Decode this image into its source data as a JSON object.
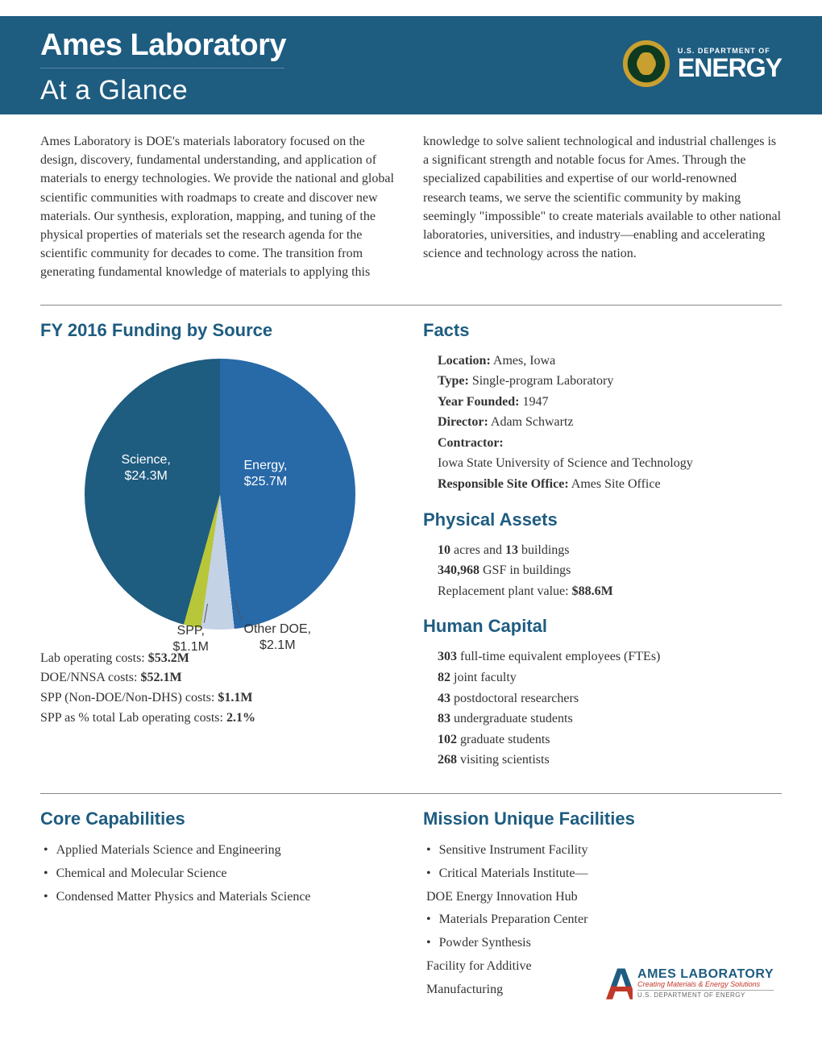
{
  "header": {
    "title": "Ames Laboratory",
    "subtitle": "At a Glance",
    "doe_small": "U.S. DEPARTMENT OF",
    "doe_big": "ENERGY"
  },
  "intro_text": "Ames Laboratory is DOE's materials laboratory focused on the design, discovery, fundamental understanding, and application of materials to energy technologies. We provide the national and global scientific communities with roadmaps to create and discover new materials. Our synthesis, exploration, mapping, and tuning of the physical properties of materials set the research agenda for the scientific community for decades to come. The transition from generating fundamental knowledge of materials to applying this knowledge to solve salient technological and industrial challenges is a significant strength and notable focus for Ames. Through the specialized capabilities and expertise of our world-renowned research teams, we serve the scientific community by making seemingly \"impossible\" to create materials available to other national laboratories, universities, and industry—enabling and accelerating science and technology across the nation.",
  "funding": {
    "heading": "FY 2016 Funding by Source",
    "slices": {
      "energy": {
        "label1": "Energy,",
        "label2": "$25.7M",
        "value": 25.7,
        "color": "#2869a8"
      },
      "other_doe": {
        "label1": "Other DOE,",
        "label2": "$2.1M",
        "value": 2.1,
        "color": "#c4d2e6"
      },
      "spp": {
        "label1": "SPP,",
        "label2": "$1.1M",
        "value": 1.1,
        "color": "#b8c63a"
      },
      "science": {
        "label1": "Science,",
        "label2": "$24.3M",
        "value": 24.3,
        "color": "#1e5c80"
      }
    },
    "pie_background_color": "#ffffff",
    "pie_border_color": "#ffffff",
    "costs": [
      {
        "prefix": "Lab operating costs: ",
        "bold": "$53.2M"
      },
      {
        "prefix": "DOE/NNSA costs: ",
        "bold": "$52.1M"
      },
      {
        "prefix": "SPP (Non-DOE/Non-DHS) costs: ",
        "bold": "$1.1M"
      },
      {
        "prefix": "SPP as % total Lab operating costs: ",
        "bold": "2.1%"
      }
    ]
  },
  "facts": {
    "heading": "Facts",
    "rows": {
      "location_label": "Location:",
      "location_value": "  Ames, Iowa",
      "type_label": "Type:",
      "type_value": "  Single-program Laboratory",
      "year_label": "Year Founded:",
      "year_value": " 1947",
      "director_label": "Director:",
      "director_value": "  Adam Schwartz",
      "contractor_label": "Contractor:",
      "contractor_value": "Iowa State University of Science and Technology",
      "rso_label": "Responsible Site Office:",
      "rso_value": " Ames Site Office"
    }
  },
  "physical": {
    "heading": "Physical Assets",
    "l1a": "10",
    "l1b": " acres and ",
    "l1c": "13",
    "l1d": " buildings",
    "l2a": "340,968",
    "l2b": " GSF in buildings",
    "l3a": "Replacement plant value: ",
    "l3b": "$88.6M"
  },
  "human": {
    "heading": "Human Capital",
    "rows": [
      {
        "b": "303",
        "t": " full-time equivalent employees (FTEs)"
      },
      {
        "b": "82",
        "t": " joint faculty"
      },
      {
        "b": "43",
        "t": " postdoctoral researchers"
      },
      {
        "b": "83",
        "t": " undergraduate students"
      },
      {
        "b": "102",
        "t": " graduate students"
      },
      {
        "b": "268",
        "t": " visiting scientists"
      }
    ]
  },
  "core": {
    "heading": "Core Capabilities",
    "items": [
      "Applied Materials Science and Engineering",
      "Chemical and Molecular Science",
      "Condensed Matter Physics and Materials Science"
    ]
  },
  "mission": {
    "heading": "Mission Unique Facilities",
    "items": [
      "Sensitive Instrument Facility",
      "Critical Materials Institute—\nDOE Energy Innovation Hub",
      "Materials Preparation Center",
      "Powder Synthesis\nFacility for Additive\nManufacturing"
    ]
  },
  "ames_logo": {
    "t1": "AMES LABORATORY",
    "t2": "Creating Materials & Energy Solutions",
    "t3": "U.S. DEPARTMENT OF ENERGY"
  }
}
